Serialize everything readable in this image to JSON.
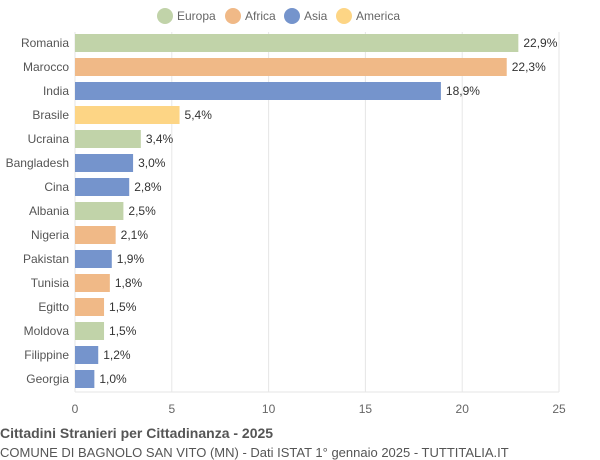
{
  "chart_data": {
    "type": "bar",
    "orientation": "horizontal",
    "title": "Cittadini Stranieri per Cittadinanza - 2025",
    "subtitle": "COMUNE DI BAGNOLO SAN VITO (MN) - Dati ISTAT 1° gennaio 2025 - TUTTITALIA.IT",
    "legend": {
      "position": "top",
      "items": [
        {
          "name": "Europa",
          "color": "#c1d3a9"
        },
        {
          "name": "Africa",
          "color": "#f0b987"
        },
        {
          "name": "Asia",
          "color": "#7594cc"
        },
        {
          "name": "America",
          "color": "#fdd585"
        }
      ]
    },
    "categories": [
      "Romania",
      "Marocco",
      "India",
      "Brasile",
      "Ucraina",
      "Bangladesh",
      "Cina",
      "Albania",
      "Nigeria",
      "Pakistan",
      "Tunisia",
      "Egitto",
      "Moldova",
      "Filippine",
      "Georgia"
    ],
    "values": [
      22.9,
      22.3,
      18.9,
      5.4,
      3.4,
      3.0,
      2.8,
      2.5,
      2.1,
      1.9,
      1.8,
      1.5,
      1.5,
      1.2,
      1.0
    ],
    "labels": [
      "22,9%",
      "22,3%",
      "18,9%",
      "5,4%",
      "3,4%",
      "3,0%",
      "2,8%",
      "2,5%",
      "2,1%",
      "1,9%",
      "1,8%",
      "1,5%",
      "1,5%",
      "1,2%",
      "1,0%"
    ],
    "groups": [
      "Europa",
      "Africa",
      "Asia",
      "America",
      "Europa",
      "Asia",
      "Asia",
      "Europa",
      "Africa",
      "Asia",
      "Africa",
      "Africa",
      "Europa",
      "Asia",
      "Asia"
    ],
    "xlim": [
      0,
      25
    ],
    "xticks": [
      "0",
      "5",
      "10",
      "15",
      "20",
      "25"
    ],
    "grid": true
  }
}
